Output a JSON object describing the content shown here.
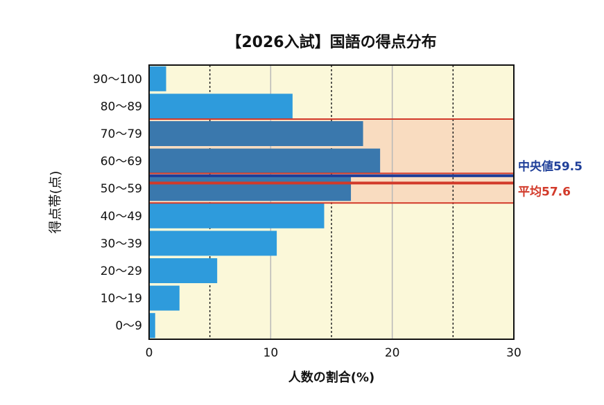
{
  "chart_data": {
    "type": "bar",
    "orientation": "horizontal",
    "title": "【2026入試】国語の得点分布",
    "xlabel": "人数の割合(%)",
    "ylabel": "得点帯(点)",
    "categories": [
      "90〜100",
      "80〜89",
      "70〜79",
      "60〜69",
      "50〜59",
      "40〜49",
      "30〜39",
      "20〜29",
      "10〜19",
      "0〜9"
    ],
    "values": [
      1.4,
      11.8,
      17.6,
      19.0,
      16.6,
      14.4,
      10.5,
      5.6,
      2.5,
      0.5
    ],
    "xlim": [
      0,
      30
    ],
    "xticks": [
      "0",
      "10",
      "20",
      "30"
    ],
    "highlight_range": [
      "70〜79",
      "50〜59"
    ],
    "annotations": [
      {
        "label": "中央値59.5",
        "value": 59.5,
        "color": "#1f3f99"
      },
      {
        "label": "平均57.6",
        "value": 57.6,
        "color": "#d23a2a"
      }
    ],
    "colors": {
      "bar": "#2e9bdc",
      "bar_highlighted": "#3a78ad",
      "plot_background": "#fbf8d9",
      "highlight_fill": "#f9dcc0",
      "highlight_border": "#d23a2a"
    }
  }
}
